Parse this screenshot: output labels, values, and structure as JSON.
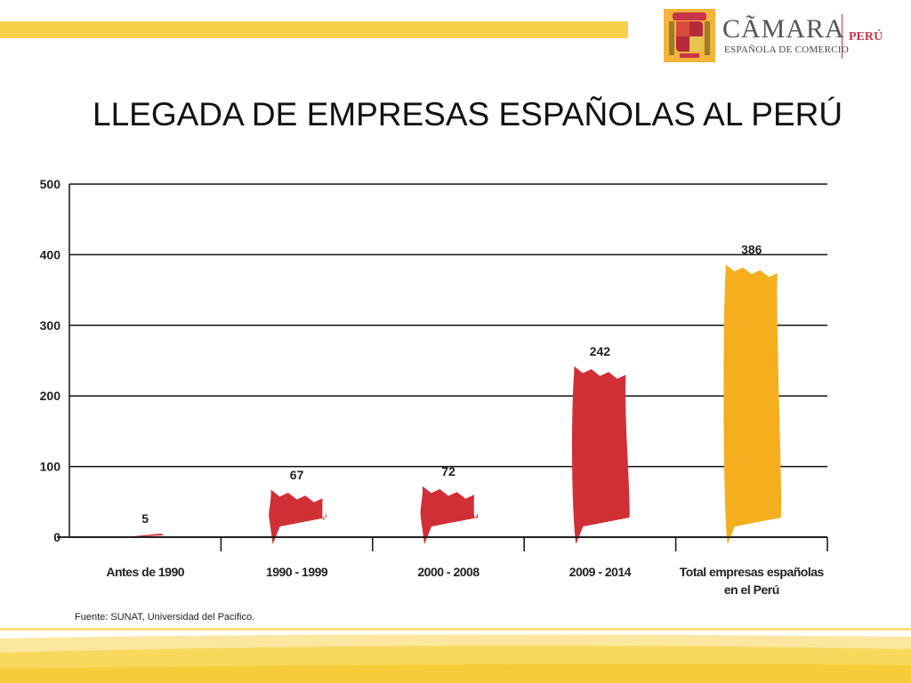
{
  "header": {
    "title": "LLEGADA DE EMPRESAS ESPAÑOLAS AL PERÚ"
  },
  "logo": {
    "icon": "coat-of-arms-icon",
    "name": "CÃMARA",
    "subtitle": "ESPAÑOLA DE COMERCIO",
    "country": "PERÚ",
    "accent_color": "#c8354b"
  },
  "colors": {
    "bar_red": "#d12f36",
    "bar_total": "#f5ae1d",
    "stripe": "#f7d14a"
  },
  "chart_data": {
    "type": "bar",
    "categories": [
      "Antes de 1990",
      "1990 - 1999",
      "2000 - 2008",
      "2009 - 2014",
      "Total empresas españolas en el Perú"
    ],
    "values": [
      5,
      67,
      72,
      242,
      386
    ],
    "value_labels": [
      "5",
      "67",
      "72",
      "242",
      "386"
    ],
    "ylim": [
      0,
      500
    ],
    "yticks": [
      0,
      100,
      200,
      300,
      400,
      500
    ],
    "grid": true,
    "legend": "none"
  },
  "footer": {
    "source": "Fuente: SUNAT, Universidad del Pacifico."
  }
}
